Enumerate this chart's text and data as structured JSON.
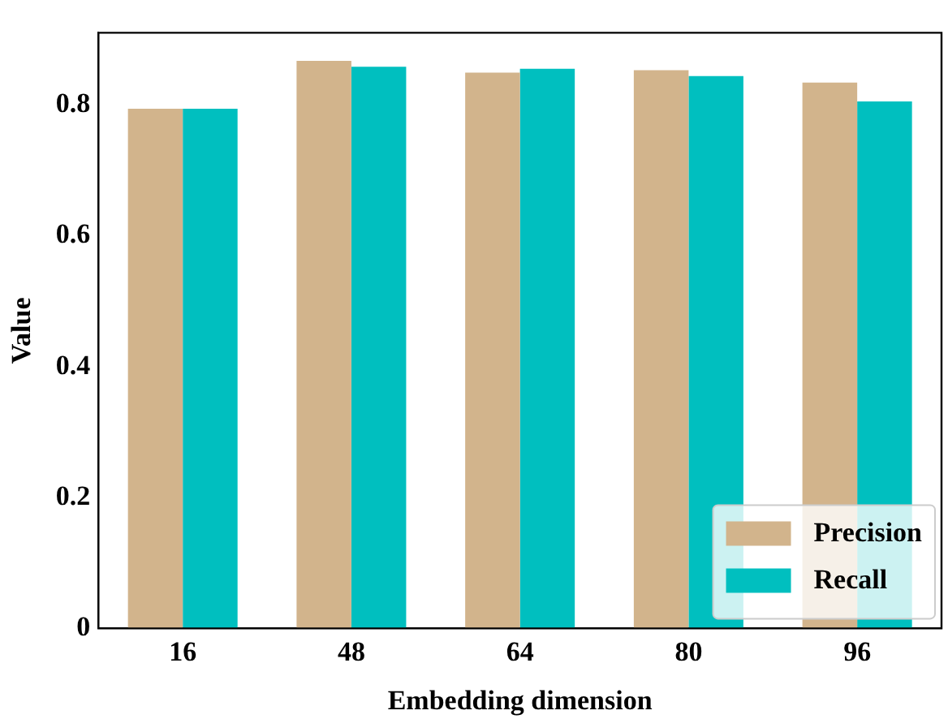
{
  "chart_data": {
    "type": "bar",
    "xlabel": "Embedding dimension",
    "ylabel": "Value",
    "categories": [
      "16",
      "48",
      "64",
      "80",
      "96"
    ],
    "series": [
      {
        "name": "Precision",
        "color": "#d2b48c",
        "values": [
          0.794,
          0.867,
          0.849,
          0.853,
          0.834
        ]
      },
      {
        "name": "Recall",
        "color": "#00bfbf",
        "values": [
          0.794,
          0.858,
          0.855,
          0.844,
          0.805
        ]
      }
    ],
    "ylim": [
      0,
      0.91
    ],
    "yticks": [
      0,
      0.2,
      0.4,
      0.6,
      0.8
    ],
    "grid": false,
    "legend": "bottom right"
  }
}
